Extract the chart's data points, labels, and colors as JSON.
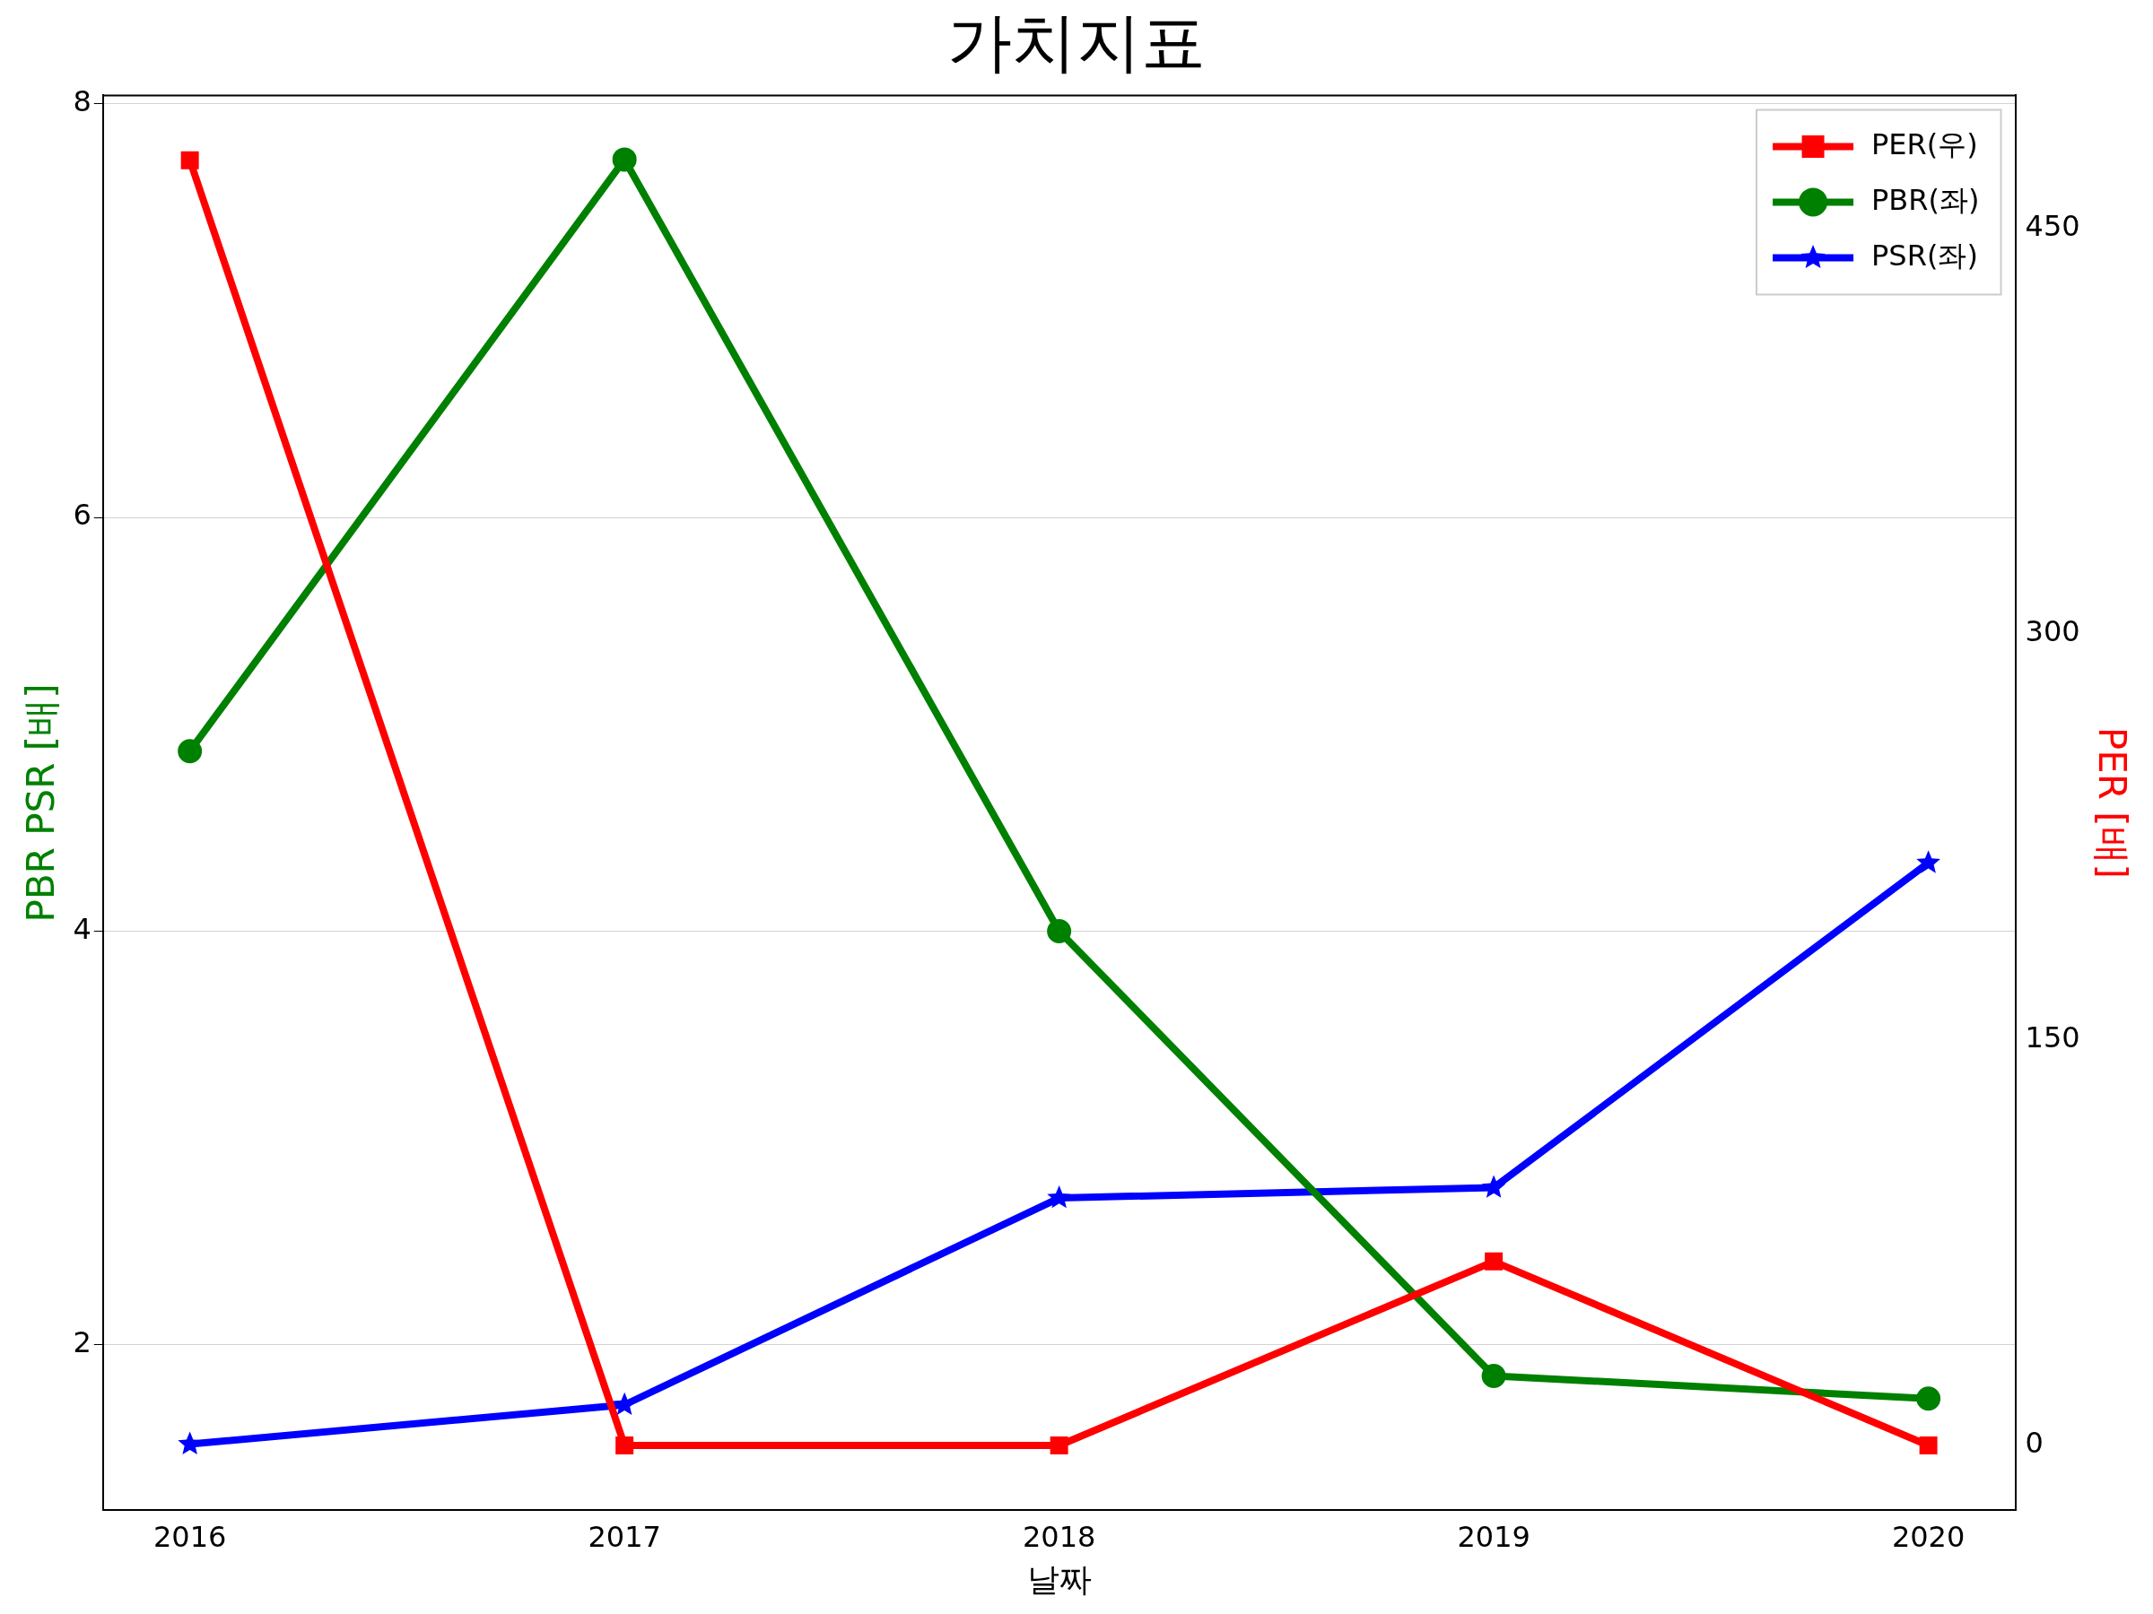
{
  "chart_data": {
    "type": "line",
    "title": "가치지표",
    "xlabel": "날짜",
    "ylabel": "PBR PSR [배]",
    "y2label": "PER [배]",
    "x": [
      2016,
      2017,
      2018,
      2019,
      2020
    ],
    "series": [
      {
        "name": "PER(우)",
        "color": "#ff0000",
        "axis": "y2",
        "marker": "square",
        "values": [
          475,
          0,
          0,
          68,
          0
        ]
      },
      {
        "name": "PBR(좌)",
        "color": "#008000",
        "marker": "circle",
        "values": [
          4.87,
          7.73,
          4.0,
          1.85,
          1.74
        ]
      },
      {
        "name": "PSR(좌)",
        "color": "#0000ff",
        "marker": "star",
        "values": [
          1.52,
          1.71,
          2.71,
          2.76,
          4.33
        ]
      }
    ],
    "xlim": [
      2015.8,
      2020.2
    ],
    "xticks": [
      2016,
      2017,
      2018,
      2019,
      2020
    ],
    "ylim": [
      1.2,
      8.04
    ],
    "yticks": [
      2,
      4,
      6,
      8
    ],
    "y2lim": [
      -24,
      499
    ],
    "y2ticks": [
      0,
      150,
      300,
      450
    ],
    "grid": "y",
    "legend": "top right",
    "line_style": "solid"
  }
}
